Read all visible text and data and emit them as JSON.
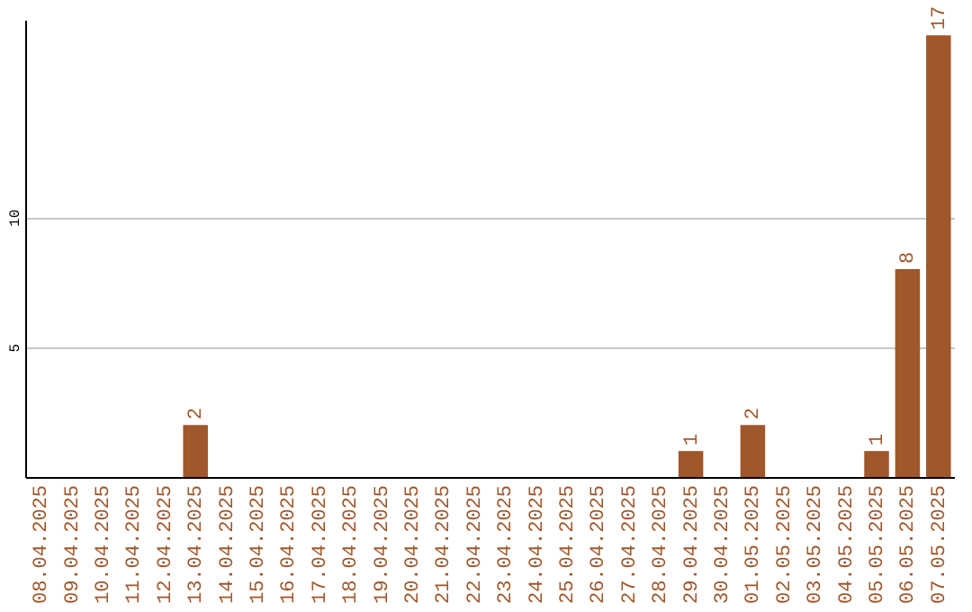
{
  "chart_data": {
    "type": "bar",
    "categories": [
      "08.04.2025",
      "09.04.2025",
      "10.04.2025",
      "11.04.2025",
      "12.04.2025",
      "13.04.2025",
      "14.04.2025",
      "15.04.2025",
      "16.04.2025",
      "17.04.2025",
      "18.04.2025",
      "19.04.2025",
      "20.04.2025",
      "21.04.2025",
      "22.04.2025",
      "23.04.2025",
      "24.04.2025",
      "25.04.2025",
      "26.04.2025",
      "27.04.2025",
      "28.04.2025",
      "29.04.2025",
      "30.04.2025",
      "01.05.2025",
      "02.05.2025",
      "03.05.2025",
      "04.05.2025",
      "05.05.2025",
      "06.05.2025",
      "07.05.2025"
    ],
    "values": [
      0,
      0,
      0,
      0,
      0,
      2,
      0,
      0,
      0,
      0,
      0,
      0,
      0,
      0,
      0,
      0,
      0,
      0,
      0,
      0,
      0,
      1,
      0,
      2,
      0,
      0,
      0,
      1,
      8,
      17
    ],
    "value_labels": [
      null,
      null,
      null,
      null,
      null,
      "2",
      null,
      null,
      null,
      null,
      null,
      null,
      null,
      null,
      null,
      null,
      null,
      null,
      null,
      null,
      null,
      "1",
      null,
      "2",
      null,
      null,
      null,
      "1",
      "8",
      "17"
    ],
    "color": "#a0572a",
    "ylim": [
      0,
      17.6
    ],
    "yticks": [
      5,
      10
    ],
    "grid": "y"
  }
}
